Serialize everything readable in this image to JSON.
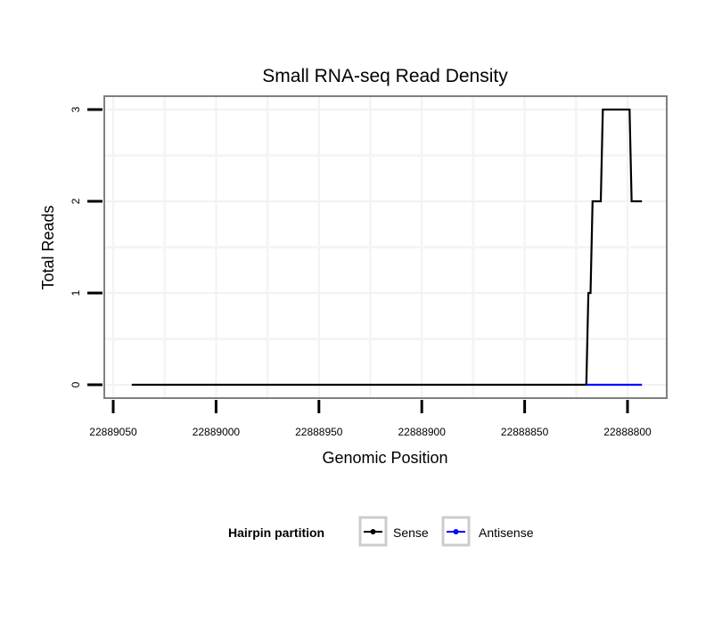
{
  "chart_data": {
    "type": "line",
    "title": "Small RNA-seq Read Density",
    "xlabel": "Genomic Position",
    "ylabel": "Total Reads",
    "xlim": [
      22889054,
      22888790
    ],
    "x_reversed": true,
    "ylim": [
      -0.15,
      3.15
    ],
    "xticks": [
      22889050,
      22889000,
      22888950,
      22888900,
      22888850,
      22888800
    ],
    "xtick_labels": [
      "22889050",
      "22889000",
      "22888950",
      "22888900",
      "22888850",
      "22888800"
    ],
    "yticks": [
      0,
      1,
      2,
      3
    ],
    "ytick_labels": [
      "0",
      "1",
      "2",
      "3"
    ],
    "grid": true,
    "legend": {
      "title": "Hairpin partition",
      "placement": "bottom"
    },
    "series": [
      {
        "name": "Sense",
        "color": "#000000",
        "x": [
          22889041,
          22888820,
          22888819,
          22888818,
          22888817,
          22888813,
          22888812,
          22888799,
          22888798,
          22888793
        ],
        "y": [
          0,
          0,
          1,
          1,
          2,
          2,
          3,
          3,
          2,
          2
        ]
      },
      {
        "name": "Antisense",
        "color": "#0000ff",
        "x": [
          22888820,
          22888793
        ],
        "y": [
          0,
          0
        ]
      }
    ]
  }
}
